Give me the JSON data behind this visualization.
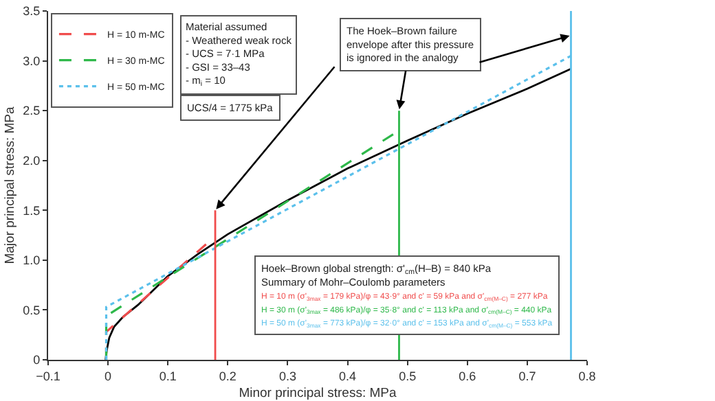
{
  "chart_data": {
    "type": "line",
    "xlabel": "Minor principal stress: MPa",
    "ylabel": "Major principal stress: MPa",
    "xlim": [
      -0.1,
      0.8
    ],
    "ylim": [
      0,
      3.5
    ],
    "xticks": [
      {
        "value": -0.1,
        "label": "−0.1"
      },
      0,
      0.1,
      0.2,
      0.3,
      0.4,
      0.5,
      0.6,
      0.7,
      0.8
    ],
    "yticks": [
      0,
      0.5,
      {
        "value": 1,
        "label": "1.0"
      },
      1.5,
      {
        "value": 2,
        "label": "2.0"
      },
      2.5,
      {
        "value": 3,
        "label": "3.0"
      },
      3.5
    ],
    "grid": false,
    "legend": "top left",
    "marker": "none",
    "series": [
      {
        "color": "#000000",
        "line_style": "solid",
        "x": [
          -0.004,
          -0.002,
          0.002,
          0.01,
          0.025,
          0.05,
          0.1,
          0.15,
          0.2,
          0.3,
          0.4,
          0.5,
          0.6,
          0.7,
          0.773
        ],
        "values": [
          0,
          0.1,
          0.22,
          0.33,
          0.43,
          0.55,
          0.84,
          1.06,
          1.26,
          1.6,
          1.92,
          2.2,
          2.47,
          2.72,
          2.92
        ]
      },
      {
        "name": "H = 10 m-MC",
        "color": "#f04c4c",
        "line_style": "dashed",
        "x": [
          -0.003,
          -0.003,
          0.179
        ],
        "values": [
          0,
          0.28,
          1.24
        ]
      },
      {
        "name": "H = 30 m-MC",
        "color": "#2eb84a",
        "line_style": "dashed",
        "x": [
          -0.003,
          -0.003,
          0.486
        ],
        "values": [
          0,
          0.44,
          2.3
        ]
      },
      {
        "name": "H = 50 m-MC",
        "color": "#5bc0eb",
        "line_style": "dotted",
        "x": [
          -0.003,
          -0.003,
          0.773
        ],
        "values": [
          0,
          0.53,
          3.05
        ]
      },
      {
        "color": "#f04c4c",
        "line_style": "solid",
        "x": [
          0.179,
          0.179
        ],
        "values": [
          0,
          1.5
        ]
      },
      {
        "color": "#2eb84a",
        "line_style": "solid",
        "x": [
          0.486,
          0.486
        ],
        "values": [
          0,
          2.5
        ]
      },
      {
        "color": "#5bc0eb",
        "line_style": "solid",
        "x": [
          0.773,
          0.773
        ],
        "values": [
          0,
          3.5
        ]
      }
    ],
    "annotations": [
      "Material assumed",
      "- Weathered weak rock",
      "- UCS = 7·1 MPa",
      "- GSI = 33–43",
      "- m$_{i}$ = 10",
      "UCS/4 = 1775 kPa",
      {
        "text": "The Hoek–Brown failure envelope after this pressure is ignored in the analogy",
        "x": 0.486,
        "y": 2.5
      },
      "Hoek–Brown global strength: σ'$_{cm}$(H–B) = 840 kPa",
      "Summary of Mohr–Coulomb parameters",
      "H = 10 m (σ'$_{3max}$ = 179 kPa)/φ = 43·9° and c' = 59 kPa and σ'$_{cm(M–C)}$ = 277 kPa",
      "H = 30 m (σ'$_{3max}$ = 486 kPa)/φ = 35·8° and c' = 113 kPa and σ'$_{cm(M–C)}$ = 440 kPa",
      "H = 50 m (σ'$_{3max}$ = 773 kPa)/φ = 32·0° and c' = 153 kPa and σ'$_{cm(M–C)}$ = 553 kPa"
    ]
  }
}
